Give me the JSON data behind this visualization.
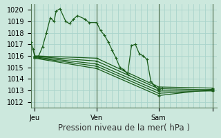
{
  "bg_color": "#cce8dd",
  "plot_bg_color": "#cce8dd",
  "grid_color": "#aad4cc",
  "line_color": "#1a5c1a",
  "ylabel_values": [
    1012,
    1013,
    1014,
    1015,
    1016,
    1017,
    1018,
    1019,
    1020
  ],
  "xlim": [
    0,
    48
  ],
  "ylim": [
    1011.5,
    1020.5
  ],
  "xlabel": "Pression niveau de la mer( hPa )",
  "xtick_positions": [
    1,
    17,
    33,
    47
  ],
  "xtick_labels": [
    "Jeu",
    "Ven",
    "Sam",
    ""
  ],
  "vlines": [
    1,
    17,
    33,
    47
  ],
  "series_main": [
    0,
    1017.2,
    0.5,
    1016.6,
    1,
    1015.9,
    2,
    1016.0,
    3,
    1016.8,
    4,
    1018.0,
    5,
    1019.3,
    6,
    1019.0,
    6.5,
    1019.9,
    7.5,
    1020.1,
    9,
    1019.0,
    10,
    1018.8,
    11,
    1019.2,
    12,
    1019.5,
    14,
    1019.2,
    15,
    1018.9,
    17,
    1018.9,
    18,
    1018.2,
    19,
    1017.8,
    20,
    1017.2,
    21,
    1016.5,
    22,
    1015.8,
    23,
    1015.0,
    24,
    1014.8,
    25,
    1014.4,
    26,
    1016.9,
    27,
    1017.0,
    28,
    1016.2,
    29,
    1016.0,
    30,
    1015.7,
    31,
    1013.8,
    32,
    1013.4,
    33,
    1013.0,
    34,
    1013.2
  ],
  "series_ensemble": [
    [
      1,
      1016.0,
      17,
      1015.8,
      33,
      1013.3,
      47,
      1013.2
    ],
    [
      1,
      1015.95,
      17,
      1015.55,
      33,
      1013.15,
      47,
      1013.05
    ],
    [
      1,
      1015.9,
      17,
      1015.3,
      33,
      1012.95,
      47,
      1012.95
    ],
    [
      1,
      1015.85,
      17,
      1015.1,
      33,
      1012.75,
      47,
      1013.0
    ],
    [
      1,
      1015.8,
      17,
      1014.9,
      33,
      1012.55,
      47,
      1013.1
    ]
  ],
  "marker_size": 2.5,
  "line_width": 0.9,
  "tick_fontsize": 7,
  "xlabel_fontsize": 8.5
}
